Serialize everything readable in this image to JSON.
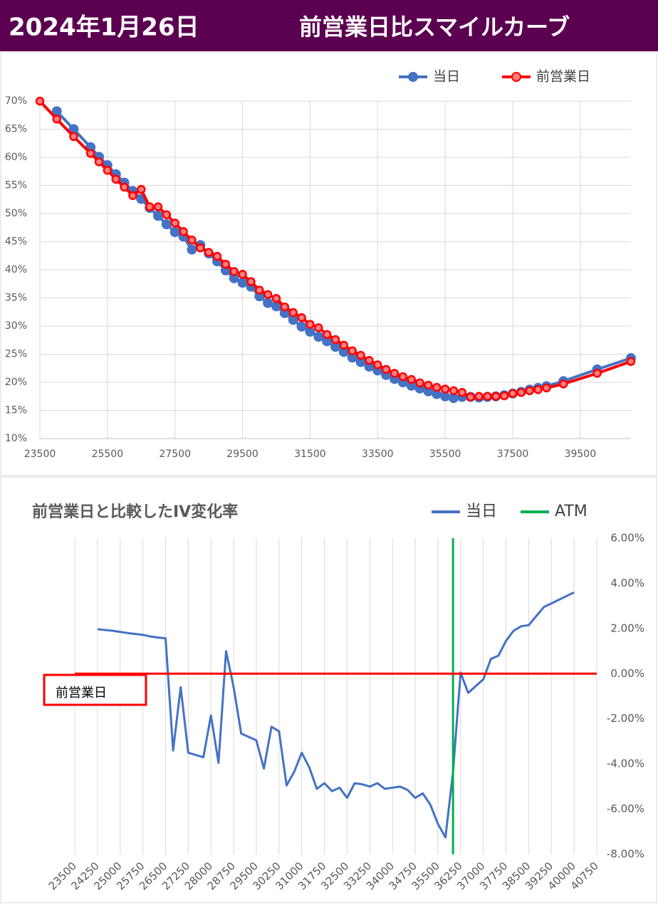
{
  "header": {
    "date": "2024年1月26日",
    "title": "前営業日比スマイルカーブ"
  },
  "chart_data": [
    {
      "type": "line",
      "markers": true,
      "grid": "both",
      "y_axis": "left",
      "legend": "top-right",
      "xlim": [
        23500,
        41000
      ],
      "xticks": [
        23500,
        25500,
        27500,
        29500,
        31500,
        33500,
        35500,
        37500,
        39500
      ],
      "ylim": [
        10,
        70
      ],
      "yticks": [
        {
          "value": 10,
          "label": "10%"
        },
        {
          "value": 15,
          "label": "15%"
        },
        {
          "value": 20,
          "label": "20%"
        },
        {
          "value": 25,
          "label": "25%"
        },
        {
          "value": 30,
          "label": "30%"
        },
        {
          "value": 35,
          "label": "35%"
        },
        {
          "value": 40,
          "label": "40%"
        },
        {
          "value": 45,
          "label": "45%"
        },
        {
          "value": 50,
          "label": "50%"
        },
        {
          "value": 55,
          "label": "55%"
        },
        {
          "value": 60,
          "label": "60%"
        },
        {
          "value": 65,
          "label": "65%"
        },
        {
          "value": 70,
          "label": "70%"
        }
      ],
      "series": [
        {
          "name": "当日",
          "color": "#4472c4",
          "x": [
            24000,
            24500,
            25000,
            25250,
            25500,
            25750,
            26000,
            26250,
            26500,
            26750,
            27000,
            27250,
            27500,
            27750,
            28000,
            28250,
            28500,
            28750,
            29000,
            29250,
            29500,
            29750,
            30000,
            30250,
            30500,
            30750,
            31000,
            31250,
            31500,
            31750,
            32000,
            32250,
            32500,
            32750,
            33000,
            33250,
            33500,
            33750,
            34000,
            34250,
            34500,
            34750,
            35000,
            35250,
            35500,
            35750,
            36000,
            36250,
            36500,
            36750,
            37000,
            37250,
            37500,
            37750,
            38000,
            38250,
            38500,
            39000,
            40000,
            41000
          ],
          "values": [
            68.2,
            65.0,
            61.8,
            60.1,
            58.6,
            57.0,
            55.5,
            54.0,
            52.6,
            51.0,
            49.6,
            48.1,
            46.7,
            45.9,
            43.6,
            44.4,
            42.9,
            41.5,
            39.9,
            38.5,
            37.7,
            37.0,
            35.3,
            34.1,
            33.5,
            32.3,
            31.1,
            29.9,
            29.0,
            28.1,
            27.3,
            26.3,
            25.4,
            24.4,
            23.6,
            22.8,
            22.1,
            21.3,
            20.6,
            20.0,
            19.4,
            18.9,
            18.4,
            17.9,
            17.5,
            17.2,
            17.4,
            17.4,
            17.3,
            17.4,
            17.5,
            17.7,
            18.0,
            18.3,
            18.7,
            19.0,
            19.3,
            20.2,
            22.3,
            24.3
          ]
        },
        {
          "name": "前営業日",
          "color": "#ff0000",
          "x": [
            23500,
            24000,
            24500,
            25000,
            25250,
            25500,
            25750,
            26000,
            26250,
            26500,
            26750,
            27000,
            27250,
            27500,
            27750,
            28000,
            28250,
            28500,
            28750,
            29000,
            29250,
            29500,
            29750,
            30000,
            30250,
            30500,
            30750,
            31000,
            31250,
            31500,
            31750,
            32000,
            32250,
            32500,
            32750,
            33000,
            33250,
            33500,
            33750,
            34000,
            34250,
            34500,
            34750,
            35000,
            35250,
            35500,
            35750,
            36000,
            36250,
            36500,
            36750,
            37000,
            37250,
            37500,
            37750,
            38000,
            38250,
            38500,
            39000,
            40000,
            41000
          ],
          "values": [
            70.0,
            66.8,
            63.7,
            60.7,
            59.2,
            57.7,
            56.1,
            54.7,
            53.2,
            54.3,
            51.2,
            51.2,
            49.8,
            48.3,
            46.8,
            45.3,
            43.9,
            43.1,
            42.4,
            41.0,
            39.7,
            39.2,
            37.9,
            36.4,
            35.6,
            34.9,
            33.4,
            32.4,
            31.5,
            30.3,
            29.7,
            28.5,
            27.6,
            26.6,
            25.6,
            24.8,
            23.9,
            23.1,
            22.3,
            21.6,
            21.0,
            20.5,
            19.9,
            19.5,
            19.1,
            18.8,
            18.5,
            18.2,
            17.4,
            17.5,
            17.5,
            17.5,
            17.6,
            18.0,
            18.2,
            18.5,
            18.7,
            19.0,
            19.7,
            21.6,
            23.7
          ]
        }
      ]
    },
    {
      "type": "line",
      "markers": false,
      "grid": "x",
      "y_axis": "right",
      "legend": "top-right",
      "title": "前営業日と比較したIV変化率",
      "xlim": [
        23500,
        40750
      ],
      "xticks": [
        23500,
        24250,
        25000,
        25750,
        26500,
        27250,
        28000,
        28750,
        29500,
        30250,
        31000,
        31750,
        32500,
        33250,
        34000,
        34750,
        35500,
        36250,
        37000,
        37750,
        38500,
        39250,
        40000,
        40750
      ],
      "ylim": [
        -8,
        6
      ],
      "yticks": [
        {
          "value": -8,
          "label": "-8.00%"
        },
        {
          "value": -6,
          "label": "-6.00%"
        },
        {
          "value": -4,
          "label": "-4.00%"
        },
        {
          "value": -2,
          "label": "-2.00%"
        },
        {
          "value": 0,
          "label": "0.00%"
        },
        {
          "value": 2,
          "label": "2.00%"
        },
        {
          "value": 4,
          "label": "4.00%"
        },
        {
          "value": 6,
          "label": "6.00%"
        }
      ],
      "series": [
        {
          "name": "当日",
          "color": "#4472c4",
          "x": [
            24250,
            24750,
            25250,
            25750,
            26000,
            26250,
            26500,
            26750,
            27000,
            27250,
            27750,
            28000,
            28250,
            28500,
            28750,
            29000,
            29500,
            29750,
            30000,
            30250,
            30500,
            30750,
            31000,
            31250,
            31500,
            31750,
            32000,
            32250,
            32500,
            32750,
            33000,
            33250,
            33500,
            33750,
            34000,
            34250,
            34500,
            34750,
            35000,
            35250,
            35500,
            35750,
            36000,
            36250,
            36500,
            36750,
            37000,
            37250,
            37500,
            37750,
            38000,
            38250,
            38500,
            39000,
            40000
          ],
          "values": [
            1.97,
            1.9,
            1.8,
            1.72,
            1.65,
            1.6,
            1.57,
            -3.4,
            -0.6,
            -3.5,
            -3.7,
            -1.85,
            -3.95,
            1.0,
            -0.6,
            -2.65,
            -2.95,
            -4.2,
            -2.35,
            -2.55,
            -4.95,
            -4.35,
            -3.5,
            -4.15,
            -5.1,
            -4.85,
            -5.2,
            -5.05,
            -5.5,
            -4.85,
            -4.9,
            -5.0,
            -4.85,
            -5.1,
            -5.05,
            -5.0,
            -5.15,
            -5.5,
            -5.3,
            -5.8,
            -6.65,
            -7.25,
            -4.35,
            0.05,
            -0.85,
            -0.55,
            -0.25,
            0.65,
            0.8,
            1.45,
            1.9,
            2.1,
            2.15,
            2.95,
            3.6
          ]
        },
        {
          "name": "ATM",
          "color": "#00b050",
          "x": [
            36000,
            36000
          ],
          "values": [
            -8,
            6
          ]
        },
        {
          "name": "前営業日",
          "color": "#ff0000",
          "in_legend": false,
          "x": [
            23500,
            40750
          ],
          "values": [
            0,
            0
          ]
        }
      ]
    }
  ]
}
